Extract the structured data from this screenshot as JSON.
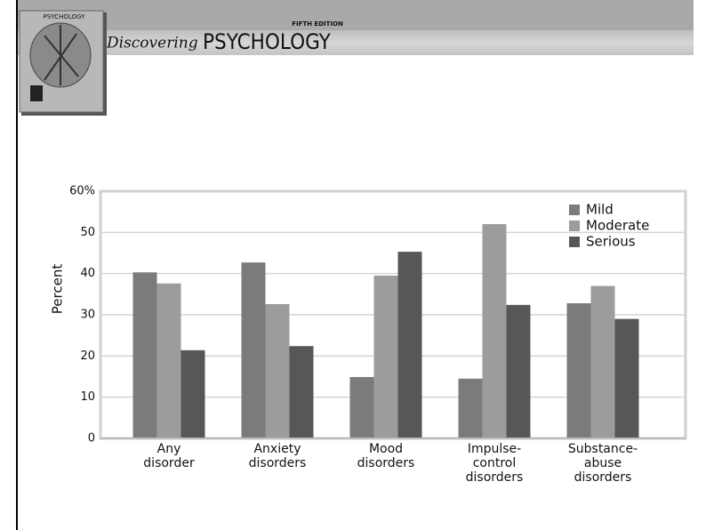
{
  "header": {
    "edition": "FIFTH EDITION",
    "title_script": "Discovering",
    "title": "PSYCHOLOGY",
    "cover_title": "PSYCHOLOGY"
  },
  "chart_data": {
    "type": "bar",
    "ylabel": "Percent",
    "categories": [
      "Any\ndisorder",
      "Anxiety\ndisorders",
      "Mood\ndisorders",
      "Impulse-\ncontrol\ndisorders",
      "Substance-\nabuse\ndisorders"
    ],
    "series": [
      {
        "name": "Mild",
        "color": "#7b7b7b",
        "values": [
          40.3,
          42.7,
          14.9,
          14.5,
          32.8
        ]
      },
      {
        "name": "Moderate",
        "color": "#9c9c9c",
        "values": [
          37.6,
          32.6,
          39.5,
          52,
          37
        ]
      },
      {
        "name": "Serious",
        "color": "#575757",
        "values": [
          21.4,
          22.4,
          45.3,
          32.4,
          29
        ]
      }
    ],
    "ylim": [
      0,
      60
    ],
    "yticks": [
      0,
      10,
      20,
      30,
      40,
      50,
      {
        "value": 60,
        "label": "60%"
      }
    ],
    "grid": true,
    "legend": "top-right"
  }
}
